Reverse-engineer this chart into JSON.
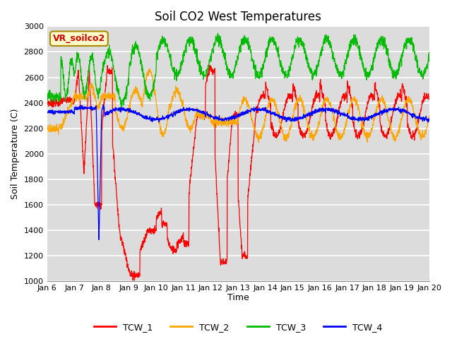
{
  "title": "Soil CO2 West Temperatures",
  "xlabel": "Time",
  "ylabel": "Soil Temperature (C)",
  "ylim": [
    1000,
    3000
  ],
  "xlim": [
    0,
    14
  ],
  "xtick_labels": [
    "Jan 6",
    "Jan 7",
    "Jan 8",
    "Jan 9",
    "Jan 10",
    "Jan 11",
    "Jan 12",
    "Jan 13",
    "Jan 14",
    "Jan 15",
    "Jan 16",
    "Jan 17",
    "Jan 18",
    "Jan 19",
    "Jan 20"
  ],
  "xtick_positions": [
    0,
    1,
    2,
    3,
    4,
    5,
    6,
    7,
    8,
    9,
    10,
    11,
    12,
    13,
    14
  ],
  "legend_labels": [
    "TCW_1",
    "TCW_2",
    "TCW_3",
    "TCW_4"
  ],
  "line_colors": [
    "#ff0000",
    "#ffa500",
    "#00bb00",
    "#0000ff"
  ],
  "annotation_text": "VR_soilco2",
  "annotation_color": "#cc0000",
  "annotation_bgcolor": "#ffffcc",
  "background_color": "#dcdcdc",
  "grid_color": "#ffffff",
  "title_fontsize": 12,
  "label_fontsize": 9,
  "yticks": [
    1000,
    1200,
    1400,
    1600,
    1800,
    2000,
    2200,
    2400,
    2600,
    2800,
    3000
  ]
}
